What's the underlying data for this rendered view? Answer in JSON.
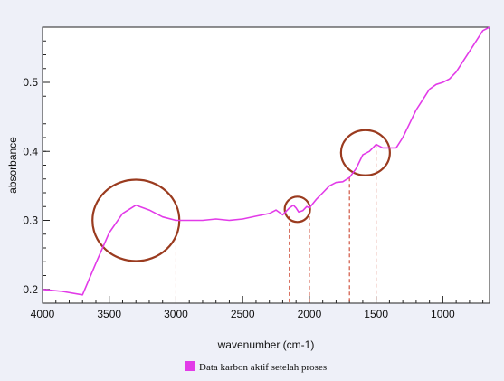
{
  "chart_data": {
    "type": "line",
    "xlabel": "wavenumber (cm-1)",
    "ylabel": "absorbance",
    "xlim": [
      4000,
      650
    ],
    "ylim": [
      0.18,
      0.58
    ],
    "x_reversed": true,
    "xticks": [
      "4000",
      "3500",
      "3000",
      "2500",
      "2000",
      "1500",
      "1000"
    ],
    "xtick_values": [
      4000,
      3500,
      3000,
      2500,
      2000,
      1500,
      1000
    ],
    "yticks": [
      "0.2",
      "0.3",
      "0.4",
      "0.5"
    ],
    "ytick_values": [
      0.2,
      0.3,
      0.4,
      0.5
    ],
    "grid": false,
    "legend_position": "bottom-center",
    "series": [
      {
        "name": "Data karbon aktif setelah proses",
        "color": "#e23be8",
        "x": [
          4000,
          3850,
          3700,
          3600,
          3500,
          3400,
          3300,
          3200,
          3100,
          3000,
          2900,
          2800,
          2700,
          2600,
          2500,
          2400,
          2300,
          2250,
          2200,
          2150,
          2120,
          2100,
          2080,
          2050,
          2020,
          2000,
          1950,
          1900,
          1850,
          1800,
          1750,
          1700,
          1650,
          1600,
          1550,
          1500,
          1450,
          1400,
          1350,
          1300,
          1250,
          1200,
          1150,
          1100,
          1050,
          1000,
          950,
          900,
          850,
          800,
          750,
          700,
          650
        ],
        "y": [
          0.2,
          0.197,
          0.192,
          0.238,
          0.282,
          0.31,
          0.322,
          0.315,
          0.305,
          0.3,
          0.3,
          0.3,
          0.302,
          0.3,
          0.302,
          0.306,
          0.31,
          0.315,
          0.308,
          0.318,
          0.322,
          0.318,
          0.312,
          0.314,
          0.32,
          0.318,
          0.33,
          0.34,
          0.35,
          0.355,
          0.356,
          0.362,
          0.375,
          0.395,
          0.4,
          0.41,
          0.405,
          0.405,
          0.405,
          0.42,
          0.44,
          0.46,
          0.475,
          0.49,
          0.497,
          0.5,
          0.505,
          0.515,
          0.53,
          0.545,
          0.56,
          0.575,
          0.58
        ]
      }
    ]
  }
}
